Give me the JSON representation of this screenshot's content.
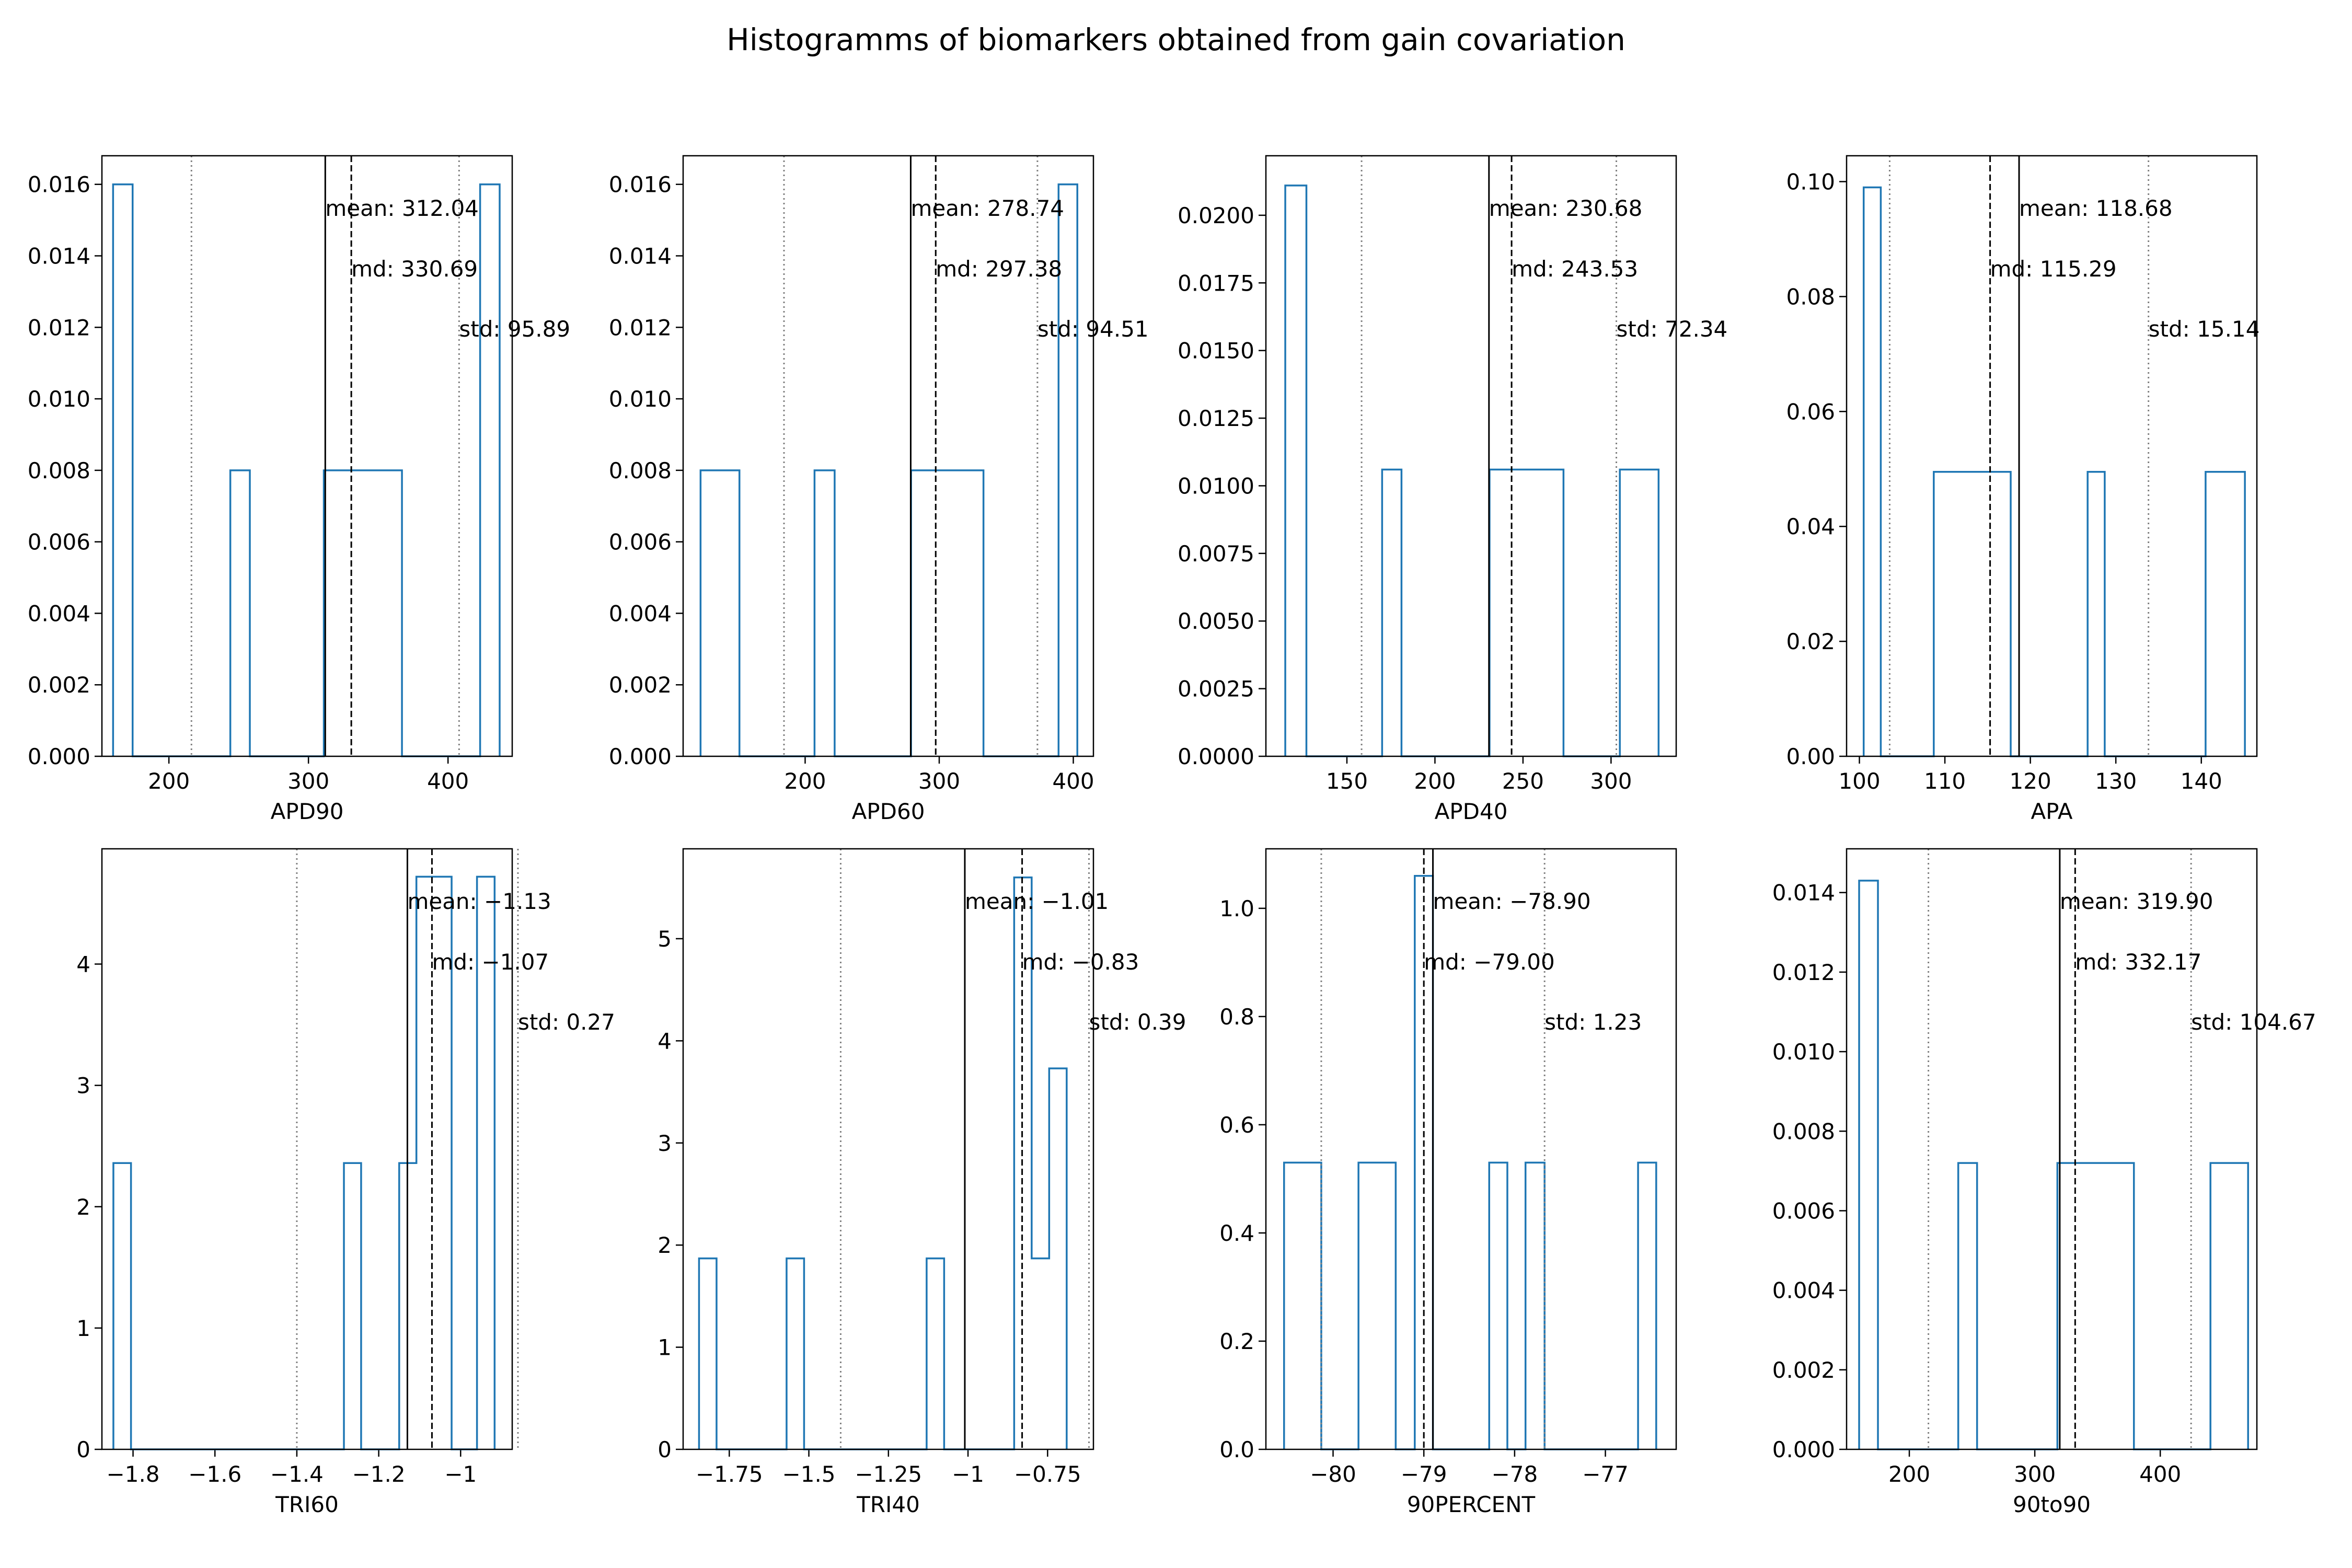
{
  "title": "Histogramms of biomarkers obtained from gain covariation",
  "colors": {
    "step": "#1f77b4",
    "axis": "#000000",
    "std_line": "#808080"
  },
  "chart_data": [
    {
      "type": "histogram",
      "xlabel": "APD90",
      "xlim": [
        152,
        446
      ],
      "ylim": [
        0,
        0.0168
      ],
      "xticks": [
        200,
        300,
        400
      ],
      "yticks": [
        0,
        0.002,
        0.004,
        0.006,
        0.008,
        0.01,
        0.012,
        0.014,
        0.016
      ],
      "yfmt": 3,
      "bins": [
        [
          160,
          174,
          0.016
        ],
        [
          244,
          258,
          0.008
        ],
        [
          311,
          367,
          0.008
        ],
        [
          423,
          437,
          0.016
        ]
      ],
      "mean": 312.04,
      "md": 330.69,
      "std": 95.89,
      "std_lines": [
        216.15,
        407.93
      ],
      "labels": {
        "mean": "mean: 312.04",
        "md": "md: 330.69",
        "std": "std: 95.89"
      }
    },
    {
      "type": "histogram",
      "xlabel": "APD60",
      "xlim": [
        109,
        415
      ],
      "ylim": [
        0,
        0.0168
      ],
      "xticks": [
        200,
        300,
        400
      ],
      "yticks": [
        0,
        0.002,
        0.004,
        0.006,
        0.008,
        0.01,
        0.012,
        0.014,
        0.016
      ],
      "yfmt": 3,
      "bins": [
        [
          122,
          151,
          0.008
        ],
        [
          207,
          222,
          0.008
        ],
        [
          279,
          333,
          0.008
        ],
        [
          389,
          403,
          0.016
        ]
      ],
      "mean": 278.74,
      "md": 297.38,
      "std": 94.51,
      "std_lines": [
        184.23,
        373.25
      ],
      "labels": {
        "mean": "mean: 278.74",
        "md": "md: 297.38",
        "std": "std: 94.51"
      }
    },
    {
      "type": "histogram",
      "xlabel": "APD40",
      "xlim": [
        104,
        337
      ],
      "ylim": [
        0,
        0.0222
      ],
      "xticks": [
        150,
        200,
        250,
        300
      ],
      "yticks": [
        0,
        0.0025,
        0.005,
        0.0075,
        0.01,
        0.0125,
        0.015,
        0.0175,
        0.02
      ],
      "yfmt": 4,
      "bins": [
        [
          115,
          127,
          0.0211
        ],
        [
          170,
          181,
          0.0106
        ],
        [
          231,
          273,
          0.0106
        ],
        [
          305,
          327,
          0.0106
        ]
      ],
      "mean": 230.68,
      "md": 243.53,
      "std": 72.34,
      "std_lines": [
        158.34,
        303.02
      ],
      "labels": {
        "mean": "mean: 230.68",
        "md": "md: 243.53",
        "std": "std: 72.34"
      }
    },
    {
      "type": "histogram",
      "xlabel": "APA",
      "xlim": [
        98.5,
        146.5
      ],
      "ylim": [
        0,
        0.1045
      ],
      "xticks": [
        100,
        110,
        120,
        130,
        140
      ],
      "yticks": [
        0,
        0.02,
        0.04,
        0.06,
        0.08,
        0.1
      ],
      "yfmt": 2,
      "bins": [
        [
          100.5,
          102.5,
          0.099
        ],
        [
          108.7,
          117.7,
          0.0495
        ],
        [
          126.7,
          128.7,
          0.0495
        ],
        [
          140.5,
          145.1,
          0.0495
        ]
      ],
      "mean": 118.68,
      "md": 115.29,
      "std": 15.14,
      "std_lines": [
        103.54,
        133.82
      ],
      "labels": {
        "mean": "mean: 118.68",
        "md": "md: 115.29",
        "std": "std: 15.14"
      }
    },
    {
      "type": "histogram",
      "xlabel": "TRI60",
      "xlim": [
        -1.876,
        -0.874
      ],
      "ylim": [
        0,
        4.95
      ],
      "xticks": [
        -1.8,
        -1.6,
        -1.4,
        -1.2,
        -1.0
      ],
      "yticks": [
        0,
        1,
        2,
        3,
        4
      ],
      "yfmt": 0,
      "bins": [
        [
          -1.848,
          -1.805,
          2.36
        ],
        [
          -1.285,
          -1.243,
          2.36
        ],
        [
          -1.15,
          -1.108,
          2.36
        ],
        [
          -1.108,
          -1.022,
          4.72
        ],
        [
          -0.96,
          -0.917,
          4.72
        ]
      ],
      "mean": -1.13,
      "md": -1.07,
      "std": 0.27,
      "std_lines": [
        -1.4,
        -0.86
      ],
      "labels": {
        "mean": "mean: -1.13",
        "md": "md: -1.07",
        "std": "std: 0.27"
      }
    },
    {
      "type": "histogram",
      "xlabel": "TRI40",
      "xlim": [
        -1.895,
        -0.606
      ],
      "ylim": [
        0,
        5.88
      ],
      "xticks": [
        -1.75,
        -1.5,
        -1.25,
        -1.0,
        -0.75
      ],
      "yticks": [
        0,
        1,
        2,
        3,
        4,
        5
      ],
      "yfmt": 0,
      "bins": [
        [
          -1.845,
          -1.79,
          1.87
        ],
        [
          -1.57,
          -1.515,
          1.87
        ],
        [
          -1.13,
          -1.075,
          1.87
        ],
        [
          -0.855,
          -0.8,
          5.6
        ],
        [
          -0.8,
          -0.745,
          1.87
        ],
        [
          -0.745,
          -0.69,
          3.73
        ]
      ],
      "mean": -1.01,
      "md": -0.83,
      "std": 0.39,
      "std_lines": [
        -1.4,
        -0.62
      ],
      "labels": {
        "mean": "mean: -1.01",
        "md": "md: -0.83",
        "std": "std: 0.39"
      }
    },
    {
      "type": "histogram",
      "xlabel": "90PERCENT",
      "xlim": [
        -80.74,
        -76.22
      ],
      "ylim": [
        0,
        1.11
      ],
      "xticks": [
        -80,
        -79,
        -78,
        -77
      ],
      "yticks": [
        0,
        0.2,
        0.4,
        0.6,
        0.8,
        1.0
      ],
      "yfmt": 1,
      "bins": [
        [
          -80.54,
          -80.13,
          0.53
        ],
        [
          -79.72,
          -79.31,
          0.53
        ],
        [
          -79.1,
          -78.9,
          1.06
        ],
        [
          -78.28,
          -78.08,
          0.53
        ],
        [
          -77.88,
          -77.67,
          0.53
        ],
        [
          -76.64,
          -76.44,
          0.53
        ]
      ],
      "mean": -78.9,
      "md": -79.0,
      "std": 1.23,
      "std_lines": [
        -80.13,
        -77.67
      ],
      "labels": {
        "mean": "mean: -78.90",
        "md": "md: -79.00",
        "std": "std: 1.23"
      }
    },
    {
      "type": "histogram",
      "xlabel": "90to90",
      "xlim": [
        150,
        477
      ],
      "ylim": [
        0,
        0.0151
      ],
      "xticks": [
        200,
        300,
        400
      ],
      "yticks": [
        0,
        0.002,
        0.004,
        0.006,
        0.008,
        0.01,
        0.012,
        0.014
      ],
      "yfmt": 3,
      "bins": [
        [
          160,
          175,
          0.0143
        ],
        [
          239,
          254,
          0.0072
        ],
        [
          318,
          379,
          0.0072
        ],
        [
          440,
          470,
          0.0072
        ]
      ],
      "mean": 319.9,
      "md": 332.17,
      "std": 104.67,
      "std_lines": [
        215.23,
        424.57
      ],
      "labels": {
        "mean": "mean: 319.90",
        "md": "md: 332.17",
        "std": "std: 104.67"
      }
    }
  ]
}
